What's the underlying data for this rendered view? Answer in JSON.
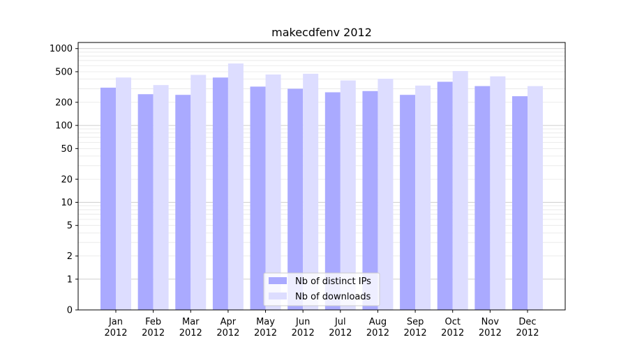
{
  "chart_data": {
    "type": "bar",
    "title": "makecdfenv 2012",
    "xlabel": "",
    "ylabel": "",
    "yscale": "symlog",
    "ylim": [
      0,
      1200
    ],
    "yticks": [
      "0",
      "1",
      "2",
      "5",
      "10",
      "20",
      "50",
      "100",
      "200",
      "500",
      "1000"
    ],
    "categories": [
      "Jan\n2012",
      "Feb\n2012",
      "Mar\n2012",
      "Apr\n2012",
      "May\n2012",
      "Jun\n2012",
      "Jul\n2012",
      "Aug\n2012",
      "Sep\n2012",
      "Oct\n2012",
      "Nov\n2012",
      "Dec\n2012"
    ],
    "series": [
      {
        "name": "Nb of distinct IPs",
        "color": "#aaaaff",
        "values": [
          310,
          255,
          250,
          420,
          320,
          300,
          270,
          280,
          250,
          370,
          325,
          240
        ]
      },
      {
        "name": "Nb of downloads",
        "color": "#ddddff",
        "values": [
          420,
          335,
          455,
          640,
          460,
          470,
          385,
          405,
          330,
          510,
          435,
          325
        ]
      }
    ],
    "grid": true,
    "legend_position": "lower-center"
  }
}
